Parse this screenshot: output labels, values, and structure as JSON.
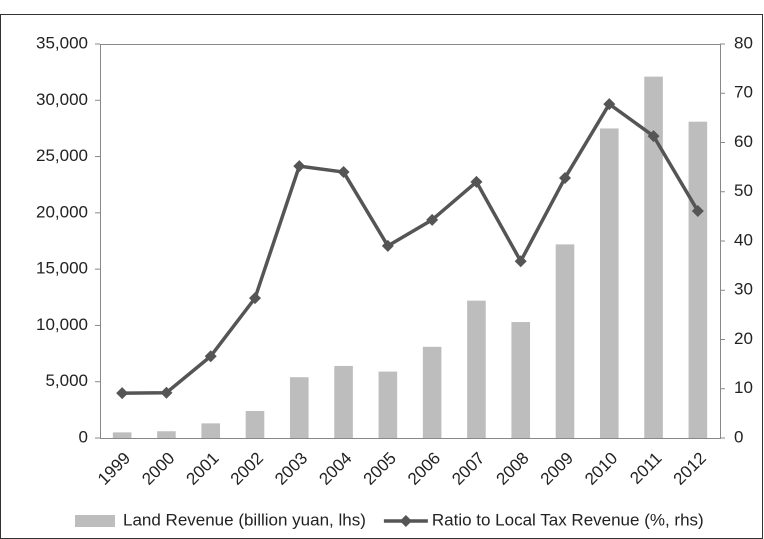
{
  "chart_data": {
    "type": "bar-line",
    "categories": [
      "1999",
      "2000",
      "2001",
      "2002",
      "2003",
      "2004",
      "2005",
      "2006",
      "2007",
      "2008",
      "2009",
      "2010",
      "2011",
      "2012"
    ],
    "series": [
      {
        "name": "Land Revenue (billion yuan, lhs)",
        "type": "bar",
        "axis": "y",
        "color": "#bdbdbd",
        "values": [
          500,
          600,
          1300,
          2400,
          5400,
          6400,
          5900,
          8100,
          12200,
          10300,
          17200,
          27500,
          32100,
          28100
        ]
      },
      {
        "name": "Ratio to Local Tax Revenue (%, rhs)",
        "type": "line",
        "axis": "y2",
        "color": "#555555",
        "values": [
          9.1,
          9.2,
          16.6,
          28.4,
          55.2,
          54.0,
          39.0,
          44.3,
          52.0,
          35.9,
          52.8,
          67.8,
          61.3,
          46.1
        ]
      }
    ],
    "ylim": [
      0,
      35000
    ],
    "yticks": [
      0,
      {
        "value": 5000,
        "label": "5,000"
      },
      {
        "value": 10000,
        "label": "10,000"
      },
      {
        "value": 15000,
        "label": "15,000"
      },
      {
        "value": 20000,
        "label": "20,000"
      },
      {
        "value": 25000,
        "label": "25,000"
      },
      {
        "value": 30000,
        "label": "30,000"
      },
      {
        "value": 35000,
        "label": "35,000"
      }
    ],
    "y2lim": [
      0,
      80
    ],
    "y2ticks": [
      0,
      10,
      20,
      30,
      40,
      50,
      60,
      70,
      80
    ],
    "legend": "bottom"
  }
}
